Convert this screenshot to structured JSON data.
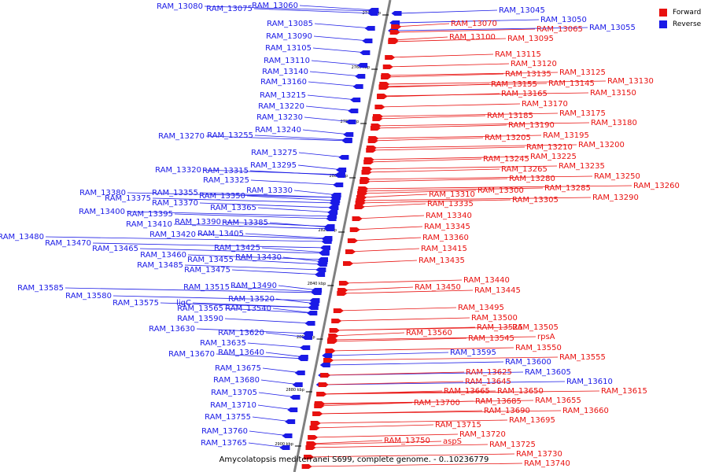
{
  "caption": "Amycolatopsis mediterranei S699, complete genome. - 0..10236779",
  "legend": [
    {
      "label": "Forward",
      "color": "#e8110f"
    },
    {
      "label": "Reverse",
      "color": "#1a1ae6"
    }
  ],
  "colors": {
    "forward": "#e8110f",
    "reverse": "#1a1ae6",
    "axis": "#808080"
  },
  "scale_labels": [
    "2740 kbp",
    "2760 kbp",
    "2780 kbp",
    "2800 kbp",
    "2820 kbp",
    "2840 kbp",
    "2860 kbp",
    "2880 kbp",
    "2900 kbp"
  ],
  "reverse_genes": [
    "RAM_13080",
    "RAM_13075",
    "RAM_13060",
    "RAM_13085",
    "RAM_13090",
    "RAM_13105",
    "RAM_13110",
    "RAM_13140",
    "RAM_13160",
    "RAM_13215",
    "RAM_13220",
    "RAM_13230",
    "RAM_13240",
    "RAM_13270",
    "RAM_13255",
    "RAM_13275",
    "RAM_13295",
    "RAM_13320",
    "RAM_13315",
    "RAM_13325",
    "RAM_13330",
    "RAM_13380",
    "RAM_13375",
    "RAM_13355",
    "RAM_13350",
    "RAM_13370",
    "RAM_13365",
    "RAM_13400",
    "RAM_13395",
    "RAM_13410",
    "RAM_13390",
    "RAM_13385",
    "RAM_13420",
    "RAM_13405",
    "RAM_13480",
    "RAM_13470",
    "RAM_13465",
    "RAM_13425",
    "RAM_13460",
    "RAM_13455",
    "RAM_13430",
    "RAM_13485",
    "RAM_13475",
    "RAM_13585",
    "RAM_13515",
    "RAM_13490",
    "RAM_13580",
    "RAM_13520",
    "RAM_13575",
    "ligC",
    "RAM_13565",
    "RAM_13540",
    "RAM_13590",
    "RAM_13630",
    "RAM_13620",
    "RAM_13635",
    "RAM_13670",
    "RAM_13640",
    "RAM_13675",
    "RAM_13680",
    "RAM_13705",
    "RAM_13710",
    "RAM_13755",
    "RAM_13760",
    "RAM_13765",
    "RAM_13045",
    "RAM_13050",
    "RAM_13055",
    "RAM_13595",
    "RAM_13600",
    "RAM_13605",
    "RAM_13610"
  ],
  "forward_genes": [
    "RAM_13070",
    "RAM_13065",
    "RAM_13100",
    "RAM_13095",
    "RAM_13115",
    "RAM_13120",
    "RAM_13135",
    "RAM_13125",
    "RAM_13155",
    "RAM_13145",
    "RAM_13130",
    "RAM_13165",
    "RAM_13150",
    "RAM_13170",
    "RAM_13185",
    "RAM_13175",
    "RAM_13190",
    "RAM_13180",
    "RAM_13205",
    "RAM_13195",
    "RAM_13210",
    "RAM_13200",
    "RAM_13225",
    "RAM_13245",
    "RAM_13235",
    "RAM_13265",
    "RAM_13280",
    "RAM_13250",
    "RAM_13285",
    "RAM_13260",
    "RAM_13300",
    "RAM_13310",
    "RAM_13305",
    "RAM_13290",
    "RAM_13335",
    "RAM_13340",
    "RAM_13345",
    "RAM_13360",
    "RAM_13415",
    "RAM_13435",
    "RAM_13440",
    "RAM_13450",
    "RAM_13445",
    "RAM_13495",
    "RAM_13500",
    "RAM_13525",
    "RAM_13505",
    "RAM_13560",
    "RAM_13545",
    "rpsA",
    "RAM_13550",
    "RAM_13555",
    "RAM_13625",
    "RAM_13645",
    "RAM_13615",
    "RAM_13665",
    "RAM_13650",
    "RAM_13685",
    "RAM_13655",
    "RAM_13700",
    "RAM_13690",
    "RAM_13660",
    "RAM_13695",
    "RAM_13715",
    "RAM_13720",
    "RAM_13750",
    "aspS",
    "RAM_13725",
    "RAM_13730",
    "RAM_13740"
  ]
}
